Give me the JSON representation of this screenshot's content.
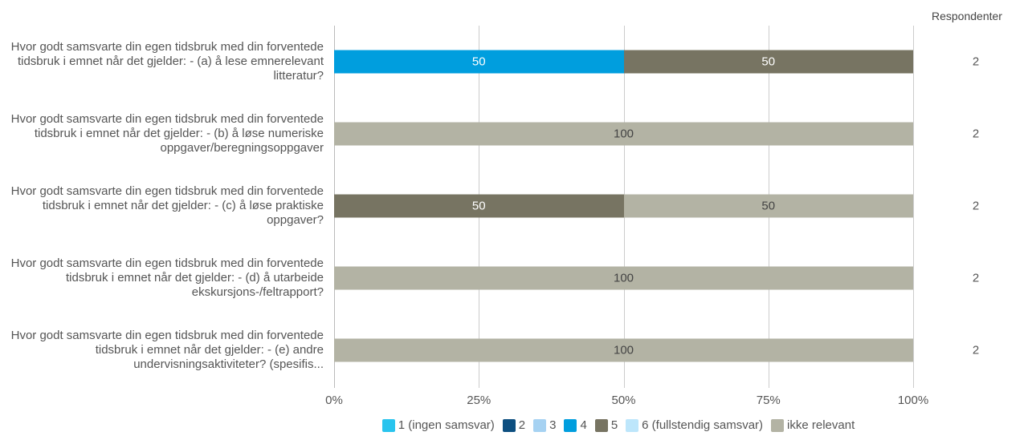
{
  "chart_data": {
    "type": "stacked-bar-horizontal",
    "categories": [
      "Hvor godt samsvarte din egen tidsbruk med din forventede tidsbruk i emnet når det gjelder: - (a) å lese emnerelevant litteratur?",
      "Hvor godt samsvarte din egen tidsbruk med din forventede tidsbruk i emnet når det gjelder: - (b) å løse numeriske oppgaver/beregningsoppgaver",
      "Hvor godt samsvarte din egen tidsbruk med din forventede tidsbruk i emnet når det gjelder: - (c) å løse praktiske oppgaver?",
      "Hvor godt samsvarte din egen tidsbruk med din forventede tidsbruk i emnet når det gjelder: - (d) å utarbeide ekskursjons-/feltrapport?",
      "Hvor godt samsvarte din egen tidsbruk med din forventede tidsbruk i emnet når det gjelder: - (e) andre undervisningsaktiviteter? (spesifis..."
    ],
    "series": [
      {
        "name": "1 (ingen samsvar)",
        "color": "#29c4ee",
        "values": [
          0,
          0,
          0,
          0,
          0
        ]
      },
      {
        "name": "2",
        "color": "#0d4f80",
        "values": [
          0,
          0,
          0,
          0,
          0
        ]
      },
      {
        "name": "3",
        "color": "#a6d2f2",
        "values": [
          0,
          0,
          0,
          0,
          0
        ]
      },
      {
        "name": "4",
        "color": "#009ede",
        "values": [
          50,
          0,
          0,
          0,
          0
        ]
      },
      {
        "name": "5",
        "color": "#777462",
        "values": [
          50,
          0,
          50,
          0,
          0
        ]
      },
      {
        "name": "6 (fullstendig samsvar)",
        "color": "#bde6fb",
        "values": [
          0,
          0,
          0,
          0,
          0
        ]
      },
      {
        "name": "ikke relevant",
        "color": "#b3b3a4",
        "values": [
          0,
          100,
          50,
          100,
          100
        ]
      }
    ],
    "xlim": [
      0,
      100
    ],
    "xticks": [
      {
        "value": 0,
        "label": "0%"
      },
      {
        "value": 25,
        "label": "25%"
      },
      {
        "value": 50,
        "label": "50%"
      },
      {
        "value": 75,
        "label": "75%"
      },
      {
        "value": 100,
        "label": "100%"
      }
    ],
    "grid": true,
    "respondents_title": "Respondenter",
    "respondents": [
      2,
      2,
      2,
      2,
      2
    ]
  }
}
